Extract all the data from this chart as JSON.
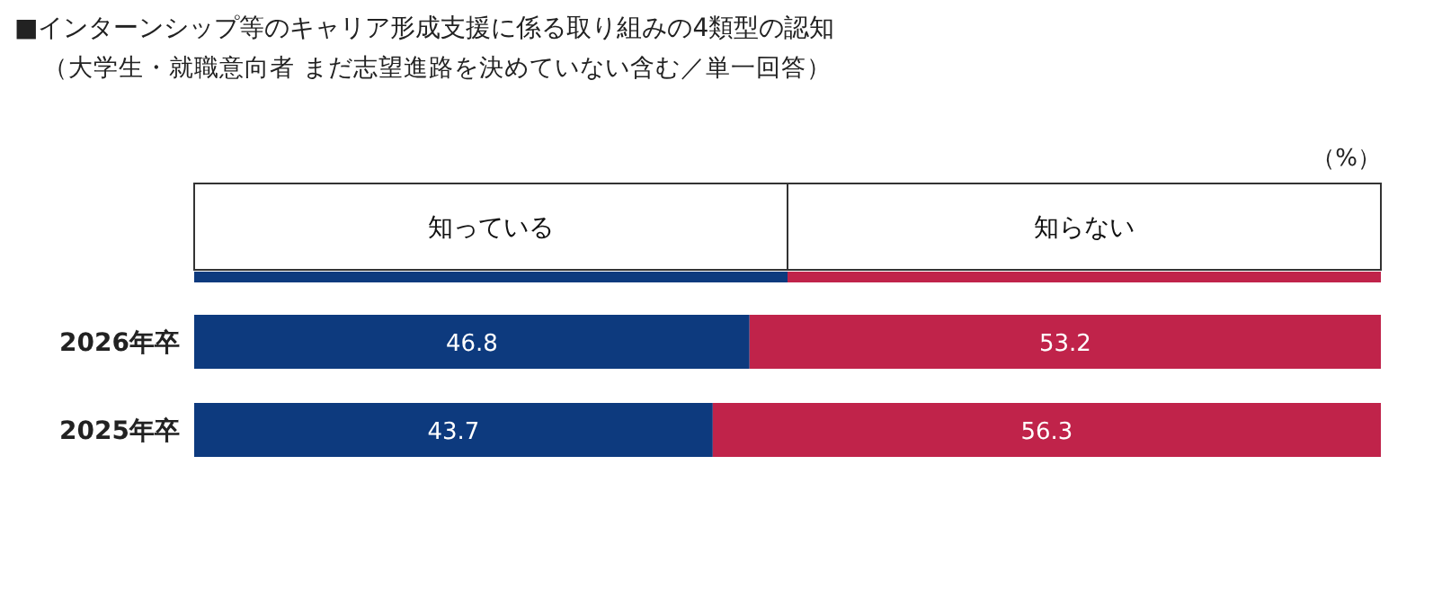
{
  "chart_data": {
    "type": "bar",
    "orientation": "horizontal",
    "stacked": true,
    "title": "■インターンシップ等のキャリア形成支援に係る取り組みの4類型の認知",
    "subtitle": "（大学生・就職意向者 まだ志望進路を決めていない含む／単一回答）",
    "annotations": [
      "（%）"
    ],
    "categories": [
      "2026年卒",
      "2025年卒"
    ],
    "series": [
      {
        "name": "知っている",
        "color": "#0d3a7e",
        "values": [
          46.8,
          43.7
        ]
      },
      {
        "name": "知らない",
        "color": "#c0234a",
        "values": [
          53.2,
          56.3
        ]
      }
    ],
    "data_labels": true,
    "legend": "top",
    "tick_labels": "y"
  }
}
